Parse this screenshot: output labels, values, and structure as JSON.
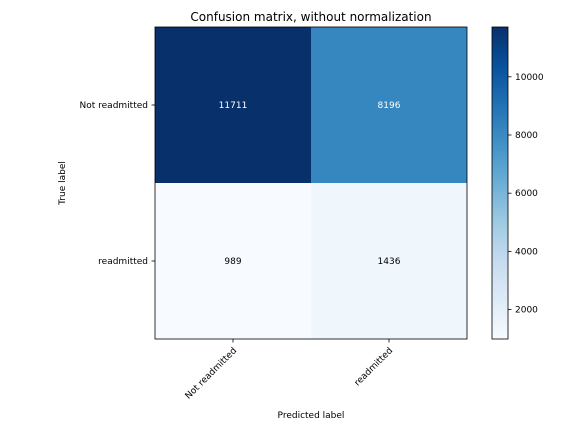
{
  "chart_data": {
    "type": "heatmap",
    "title": "Confusion matrix, without normalization",
    "xlabel": "Predicted label",
    "ylabel": "True label",
    "x_categories": [
      "Not readmitted",
      "readmitted"
    ],
    "y_categories": [
      "Not readmitted",
      "readmitted"
    ],
    "values": [
      [
        11711,
        8196
      ],
      [
        989,
        1436
      ]
    ],
    "colormap": "Blues",
    "color_range": [
      989,
      11711
    ],
    "colorbar_ticks": [
      2000,
      4000,
      6000,
      8000,
      10000
    ]
  },
  "colors": {
    "low": "#f7fbff",
    "high": "#08306b"
  }
}
